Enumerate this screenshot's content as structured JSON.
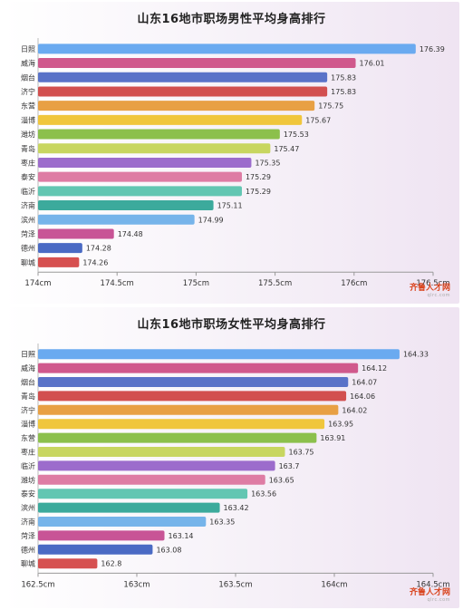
{
  "logo_text": "齐鲁人才网",
  "logo_sub": "qlrc.com",
  "chart_data": [
    {
      "type": "bar",
      "orientation": "horizontal",
      "title": "山东16地市职场男性平均身高排行",
      "categories": [
        "日照",
        "威海",
        "烟台",
        "济宁",
        "东营",
        "淄博",
        "潍坊",
        "青岛",
        "枣庄",
        "泰安",
        "临沂",
        "济南",
        "滨州",
        "菏泽",
        "德州",
        "聊城"
      ],
      "values": [
        176.39,
        176.01,
        175.83,
        175.83,
        175.75,
        175.67,
        175.53,
        175.47,
        175.35,
        175.29,
        175.29,
        175.11,
        174.99,
        174.48,
        174.28,
        174.26
      ],
      "value_labels": [
        "176.39",
        "176.01",
        "175.83",
        "175.83",
        "175.75",
        "175.67",
        "175.53",
        "175.47",
        "175.35",
        "175.29",
        "175.29",
        "175.11",
        "174.99",
        "174.48",
        "174.28",
        "174.26"
      ],
      "xlim": [
        174,
        176.5
      ],
      "ticks": [
        174,
        174.5,
        175,
        175.5,
        176,
        176.5
      ],
      "tick_labels": [
        "174cm",
        "174.5cm",
        "175cm",
        "175.5cm",
        "176cm",
        "176.5cm"
      ],
      "colors": [
        "#6aaaf0",
        "#d0588c",
        "#5a72c8",
        "#d24f4f",
        "#e8a044",
        "#f0c63c",
        "#8cc04c",
        "#c8d660",
        "#9c6ccc",
        "#de7ca4",
        "#62c6b2",
        "#3caa9c",
        "#76b4ea",
        "#c85496",
        "#4a6ac4",
        "#d65050"
      ]
    },
    {
      "type": "bar",
      "orientation": "horizontal",
      "title": "山东16地市职场女性平均身高排行",
      "categories": [
        "日照",
        "威海",
        "烟台",
        "青岛",
        "济宁",
        "淄博",
        "东营",
        "枣庄",
        "临沂",
        "潍坊",
        "泰安",
        "滨州",
        "济南",
        "菏泽",
        "德州",
        "聊城"
      ],
      "values": [
        164.33,
        164.12,
        164.07,
        164.06,
        164.02,
        163.95,
        163.91,
        163.75,
        163.7,
        163.65,
        163.56,
        163.42,
        163.35,
        163.14,
        163.08,
        162.8
      ],
      "value_labels": [
        "164.33",
        "164.12",
        "164.07",
        "164.06",
        "164.02",
        "163.95",
        "163.91",
        "163.75",
        "163.7",
        "163.65",
        "163.56",
        "163.42",
        "163.35",
        "163.14",
        "163.08",
        "162.8"
      ],
      "xlim": [
        162.5,
        164.5
      ],
      "ticks": [
        162.5,
        163,
        163.5,
        164,
        164.5
      ],
      "tick_labels": [
        "162.5cm",
        "163cm",
        "163.5cm",
        "164cm",
        "164.5cm"
      ],
      "colors": [
        "#6aaaf0",
        "#d0588c",
        "#5a72c8",
        "#d24f4f",
        "#e8a044",
        "#f0c63c",
        "#8cc04c",
        "#c8d660",
        "#9c6ccc",
        "#de7ca4",
        "#62c6b2",
        "#3caa9c",
        "#76b4ea",
        "#c85496",
        "#4a6ac4",
        "#d65050"
      ]
    }
  ]
}
